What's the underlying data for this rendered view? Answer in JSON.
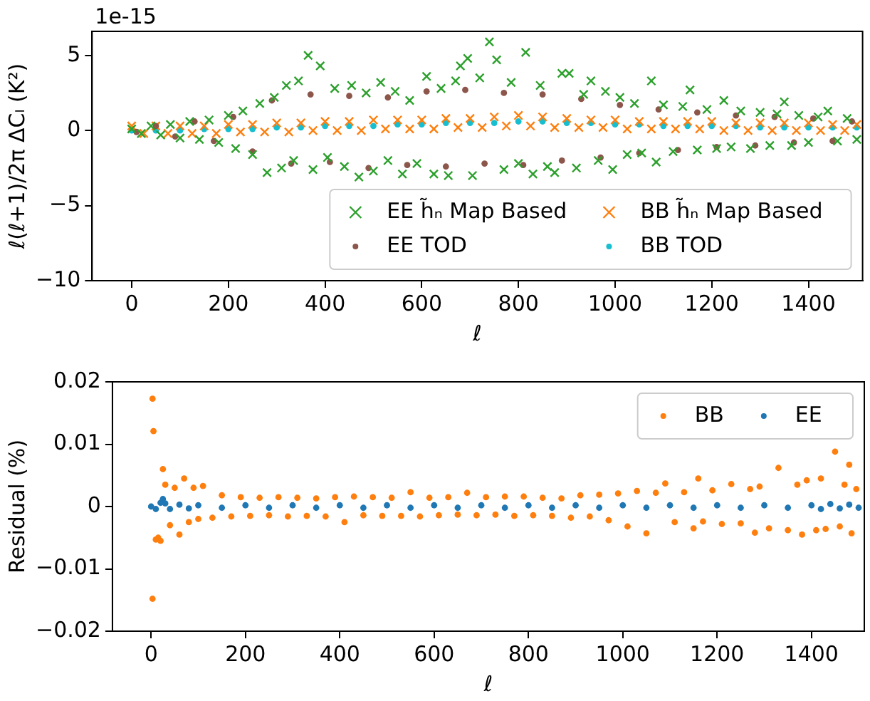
{
  "chart_data": [
    {
      "type": "scatter",
      "xlabel": "ℓ",
      "ylabel": "ℓ(ℓ+1)/2π ΔCₗ (K²)",
      "annotations": [
        "1e-15"
      ],
      "xlim": [
        -82,
        1512
      ],
      "ylim": [
        -10,
        6.6
      ],
      "xticks": [
        0,
        200,
        400,
        600,
        800,
        1000,
        1200,
        1400
      ],
      "yticks": [
        -10,
        -5,
        0,
        5
      ],
      "legend": "bottom right",
      "grid": false,
      "series": [
        {
          "name": "EE h̃ₙ Map Based",
          "color": "#2ca02c",
          "marker": "cross",
          "x": [
            0,
            20,
            40,
            60,
            80,
            100,
            120,
            140,
            160,
            180,
            200,
            215,
            230,
            250,
            265,
            280,
            295,
            310,
            320,
            335,
            345,
            365,
            375,
            390,
            405,
            420,
            440,
            455,
            470,
            485,
            500,
            515,
            530,
            545,
            560,
            575,
            590,
            610,
            625,
            640,
            655,
            670,
            680,
            695,
            705,
            720,
            740,
            755,
            770,
            785,
            800,
            815,
            830,
            845,
            860,
            875,
            890,
            905,
            920,
            935,
            950,
            965,
            980,
            995,
            1010,
            1025,
            1040,
            1055,
            1075,
            1085,
            1100,
            1120,
            1140,
            1155,
            1170,
            1190,
            1210,
            1225,
            1240,
            1260,
            1280,
            1300,
            1320,
            1335,
            1350,
            1365,
            1380,
            1400,
            1420,
            1440,
            1460,
            1480,
            1500
          ],
          "values": [
            0.1,
            -0.2,
            0.3,
            -0.3,
            0.4,
            -0.5,
            0.6,
            -0.6,
            0.7,
            -0.8,
            1.0,
            -1.2,
            1.3,
            -1.6,
            1.8,
            -2.8,
            2.2,
            -2.5,
            3.0,
            -2.0,
            3.3,
            5.0,
            -2.6,
            4.3,
            -1.8,
            2.8,
            -2.4,
            3.0,
            -3.1,
            2.5,
            -2.7,
            3.2,
            -2.0,
            2.6,
            -2.9,
            2.0,
            -2.2,
            3.6,
            -2.9,
            2.8,
            -3.0,
            3.3,
            4.3,
            4.8,
            -3.0,
            3.5,
            5.9,
            4.7,
            -2.6,
            3.2,
            -2.2,
            5.2,
            -2.9,
            3.0,
            -2.4,
            -2.8,
            3.8,
            3.8,
            -2.5,
            2.4,
            3.3,
            -2.0,
            2.6,
            -2.6,
            2.2,
            -1.6,
            1.8,
            -1.5,
            3.3,
            -2.1,
            1.7,
            -1.4,
            1.6,
            2.7,
            -1.3,
            1.4,
            -1.2,
            2.0,
            -1.1,
            1.3,
            -1.2,
            1.2,
            -1.0,
            1.1,
            1.9,
            -1.0,
            1.0,
            -0.8,
            0.9,
            1.3,
            -0.7,
            0.8,
            -0.6
          ]
        },
        {
          "name": "EE TOD",
          "color": "#8c564b",
          "marker": "circle",
          "x": [
            10,
            50,
            90,
            130,
            170,
            210,
            250,
            290,
            330,
            370,
            410,
            450,
            490,
            530,
            570,
            610,
            650,
            690,
            730,
            770,
            810,
            850,
            890,
            930,
            970,
            1010,
            1050,
            1090,
            1130,
            1170,
            1210,
            1250,
            1290,
            1330,
            1370,
            1410,
            1450,
            1490
          ],
          "values": [
            -0.1,
            0.3,
            -0.4,
            0.6,
            -0.7,
            0.9,
            -1.4,
            2.0,
            -2.2,
            2.4,
            -2.1,
            2.3,
            -2.5,
            2.2,
            -2.3,
            2.6,
            -2.4,
            2.7,
            -2.2,
            2.5,
            -2.3,
            2.4,
            -2.0,
            2.1,
            -1.8,
            1.7,
            -1.5,
            1.4,
            -1.3,
            1.2,
            -1.1,
            1.0,
            -1.0,
            0.9,
            -0.8,
            0.8,
            -0.7,
            0.6
          ]
        },
        {
          "name": "BB h̃ₙ Map Based",
          "color": "#ff7f0e",
          "marker": "cross",
          "x": [
            0,
            50,
            100,
            150,
            200,
            250,
            300,
            350,
            400,
            450,
            500,
            550,
            600,
            650,
            700,
            750,
            800,
            850,
            900,
            950,
            1000,
            1050,
            1100,
            1150,
            1200,
            1250,
            1300,
            1350,
            1400,
            1450,
            1500,
            25,
            75,
            125,
            175,
            225,
            275,
            325,
            375,
            425,
            475,
            525,
            575,
            625,
            675,
            725,
            775,
            825,
            875,
            925,
            975,
            1025,
            1075,
            1125,
            1175,
            1225,
            1275,
            1325,
            1375,
            1425,
            1475
          ],
          "values": [
            0.3,
            0.3,
            0.3,
            0.3,
            0.4,
            0.4,
            0.5,
            0.5,
            0.6,
            0.6,
            0.7,
            0.7,
            0.7,
            0.8,
            0.8,
            0.9,
            1.0,
            0.9,
            0.8,
            0.7,
            0.7,
            0.6,
            0.6,
            0.6,
            0.6,
            0.5,
            0.5,
            0.5,
            0.5,
            0.4,
            0.4,
            -0.2,
            -0.2,
            -0.2,
            -0.2,
            -0.1,
            -0.1,
            -0.1,
            0.0,
            0.0,
            0.0,
            0.1,
            0.1,
            0.1,
            0.2,
            0.2,
            0.3,
            0.3,
            0.2,
            0.2,
            0.2,
            0.1,
            0.1,
            0.1,
            0.1,
            0.0,
            0.0,
            0.0,
            0.0,
            0.0,
            0.0
          ]
        },
        {
          "name": "BB TOD",
          "color": "#17becf",
          "marker": "circle",
          "x": [
            0,
            50,
            100,
            150,
            200,
            250,
            300,
            350,
            400,
            450,
            500,
            550,
            600,
            650,
            700,
            750,
            800,
            850,
            900,
            950,
            1000,
            1050,
            1100,
            1150,
            1200,
            1250,
            1300,
            1350,
            1400,
            1450,
            1500
          ],
          "values": [
            0.0,
            0.0,
            0.0,
            0.1,
            0.1,
            0.1,
            0.2,
            0.2,
            0.3,
            0.3,
            0.3,
            0.4,
            0.4,
            0.5,
            0.5,
            0.5,
            0.6,
            0.6,
            0.5,
            0.5,
            0.4,
            0.4,
            0.3,
            0.3,
            0.3,
            0.3,
            0.2,
            0.2,
            0.2,
            0.2,
            0.2
          ]
        }
      ]
    },
    {
      "type": "scatter",
      "xlabel": "ℓ",
      "ylabel": "Residual (%)",
      "xlim": [
        -82,
        1512
      ],
      "ylim": [
        -0.02,
        0.02
      ],
      "xticks": [
        0,
        200,
        400,
        600,
        800,
        1000,
        1200,
        1400
      ],
      "yticks": [
        -0.02,
        -0.01,
        0.0,
        0.01,
        0.02
      ],
      "legend": "top right",
      "grid": false,
      "series": [
        {
          "name": "BB",
          "color": "#ff7f0e",
          "marker": "circle",
          "x": [
            3,
            5,
            3,
            10,
            15,
            25,
            20,
            30,
            40,
            50,
            60,
            70,
            80,
            90,
            100,
            110,
            130,
            150,
            170,
            190,
            210,
            230,
            250,
            270,
            290,
            310,
            330,
            350,
            370,
            390,
            410,
            430,
            450,
            470,
            490,
            510,
            530,
            550,
            570,
            590,
            610,
            630,
            650,
            670,
            690,
            710,
            730,
            750,
            770,
            790,
            810,
            830,
            850,
            870,
            890,
            910,
            930,
            950,
            970,
            990,
            1010,
            1030,
            1050,
            1070,
            1090,
            1110,
            1130,
            1150,
            1160,
            1170,
            1190,
            1210,
            1230,
            1250,
            1270,
            1280,
            1290,
            1310,
            1330,
            1350,
            1370,
            1380,
            1390,
            1410,
            1420,
            1430,
            1450,
            1460,
            1470,
            1480,
            1485,
            1495
          ],
          "values": [
            0.0173,
            0.0121,
            -0.0148,
            -0.0053,
            -0.005,
            0.006,
            -0.0055,
            0.0035,
            -0.003,
            0.003,
            -0.0045,
            0.0045,
            -0.0025,
            0.003,
            -0.002,
            0.0033,
            -0.0018,
            0.0018,
            -0.0016,
            0.0015,
            -0.0015,
            0.0014,
            -0.0014,
            0.0015,
            -0.0016,
            0.0014,
            -0.0015,
            0.0013,
            -0.0016,
            0.0015,
            -0.0025,
            0.0016,
            -0.0014,
            0.0015,
            -0.0015,
            0.0014,
            -0.0015,
            0.0023,
            -0.0016,
            0.0014,
            -0.0014,
            0.0015,
            -0.0013,
            0.0022,
            -0.0014,
            0.0015,
            -0.0013,
            0.0016,
            -0.0015,
            0.0016,
            -0.0014,
            0.0014,
            -0.0015,
            0.0013,
            -0.0018,
            0.0018,
            -0.0016,
            0.0019,
            -0.0022,
            0.0021,
            -0.0032,
            0.0025,
            -0.0043,
            0.0022,
            0.0037,
            -0.0025,
            0.0023,
            -0.0035,
            0.0045,
            -0.0024,
            0.0026,
            -0.0028,
            0.0036,
            -0.0027,
            0.0028,
            -0.0042,
            0.0032,
            -0.0035,
            0.0062,
            -0.0038,
            0.0035,
            -0.0045,
            0.0042,
            -0.0038,
            0.0045,
            -0.0036,
            0.0088,
            -0.0032,
            0.0035,
            0.0067,
            -0.0043,
            0.0028
          ]
        },
        {
          "name": "EE",
          "color": "#1f77b4",
          "marker": "circle",
          "x": [
            0,
            10,
            20,
            25,
            30,
            40,
            60,
            80,
            100,
            150,
            200,
            250,
            300,
            350,
            400,
            450,
            500,
            550,
            600,
            650,
            700,
            750,
            800,
            850,
            900,
            950,
            1000,
            1050,
            1100,
            1150,
            1200,
            1250,
            1300,
            1350,
            1400,
            1420,
            1440,
            1460,
            1480,
            1500
          ],
          "values": [
            0.0,
            -0.0004,
            0.0006,
            0.0012,
            0.0005,
            -0.0004,
            0.0003,
            -0.0003,
            0.0002,
            -0.0002,
            0.0002,
            -0.0002,
            0.0002,
            -0.0002,
            0.0002,
            -0.0002,
            0.0002,
            -0.0002,
            0.0002,
            -0.0002,
            0.0002,
            -0.0002,
            0.0002,
            -0.0002,
            0.0002,
            -0.0002,
            0.0002,
            -0.0002,
            0.0002,
            -0.0002,
            0.0002,
            -0.0002,
            0.0002,
            -0.0002,
            0.0002,
            -0.0004,
            0.0004,
            -0.0003,
            0.0003,
            -0.0002
          ]
        }
      ]
    }
  ]
}
